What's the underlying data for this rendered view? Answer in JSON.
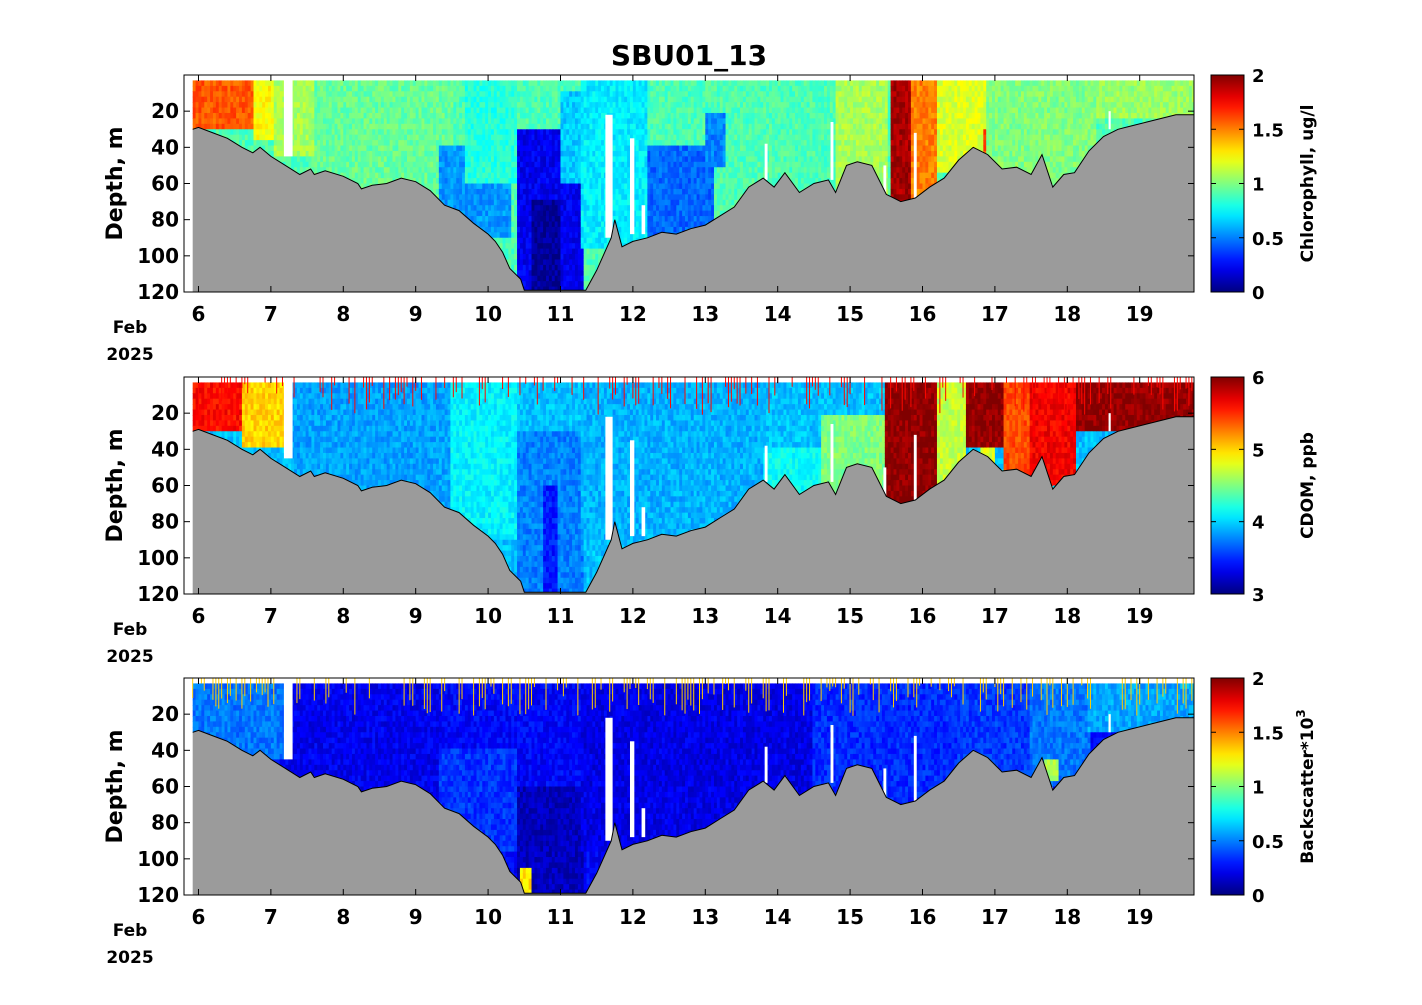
{
  "figure_title": "SBU01_13",
  "colors": {
    "bathymetry_fill": "#9b9b9b",
    "bathymetry_line": "#000000",
    "no_data": "#ffffff",
    "colormap": "jet"
  },
  "chart_data": [
    {
      "type": "heatmap",
      "title": "SBU01_13",
      "xlabel": "",
      "xlabel_date_lines": [
        "Feb",
        "2025"
      ],
      "ylabel": "Depth, m",
      "colorbar_label": "Chlorophyll, ug/l",
      "colorbar_label_sup": "",
      "x_unit": "day of Feb 2025",
      "xlim": [
        5.8,
        19.75
      ],
      "ylim": [
        120,
        0
      ],
      "x_ticks": [
        6,
        7,
        8,
        9,
        10,
        11,
        12,
        13,
        14,
        15,
        16,
        17,
        18,
        19
      ],
      "y_ticks": [
        20,
        40,
        60,
        80,
        100,
        120
      ],
      "clim": [
        0,
        2
      ],
      "colorbar_ticks": [
        "0",
        "0.5",
        "1",
        "1.5",
        "2"
      ],
      "background_level": 0.9,
      "surface_noise": false,
      "features": [
        {
          "x": [
            5.92,
            6.8
          ],
          "z": [
            3,
            30
          ],
          "level": 1.58
        },
        {
          "x": [
            6.75,
            7.05
          ],
          "z": [
            3,
            35
          ],
          "level": 1.25
        },
        {
          "x": [
            7.05,
            7.6
          ],
          "z": [
            3,
            45
          ],
          "level": 1.08
        },
        {
          "x": [
            7.6,
            9.5
          ],
          "z": [
            3,
            80
          ],
          "level": 0.95
        },
        {
          "x": [
            9.3,
            10.3
          ],
          "z": [
            40,
            90
          ],
          "level": 0.55
        },
        {
          "x": [
            9.7,
            10.4
          ],
          "z": [
            3,
            60
          ],
          "level": 0.82
        },
        {
          "x": [
            10.4,
            11.3
          ],
          "z": [
            30,
            120
          ],
          "level": 0.22
        },
        {
          "x": [
            10.6,
            11.0
          ],
          "z": [
            70,
            120
          ],
          "level": 0.05
        },
        {
          "x": [
            11.0,
            11.3
          ],
          "z": [
            10,
            60
          ],
          "level": 0.65
        },
        {
          "x": [
            11.3,
            12.2
          ],
          "z": [
            3,
            95
          ],
          "level": 0.72
        },
        {
          "x": [
            12.2,
            13.1
          ],
          "z": [
            40,
            90
          ],
          "level": 0.45
        },
        {
          "x": [
            13.0,
            13.3
          ],
          "z": [
            20,
            50
          ],
          "level": 0.5
        },
        {
          "x": [
            13.3,
            14.8
          ],
          "z": [
            3,
            70
          ],
          "level": 0.9
        },
        {
          "x": [
            14.8,
            15.5
          ],
          "z": [
            3,
            70
          ],
          "level": 1.08
        },
        {
          "x": [
            15.55,
            15.85
          ],
          "z": [
            3,
            72
          ],
          "level": 1.92
        },
        {
          "x": [
            15.85,
            16.2
          ],
          "z": [
            3,
            72
          ],
          "level": 1.5
        },
        {
          "x": [
            16.2,
            16.9
          ],
          "z": [
            3,
            55
          ],
          "level": 1.18
        },
        {
          "x": [
            16.85,
            16.95
          ],
          "z": [
            30,
            45
          ],
          "level": 1.6
        },
        {
          "x": [
            16.9,
            18.4
          ],
          "z": [
            3,
            60
          ],
          "level": 1.0
        },
        {
          "x": [
            18.4,
            19.75
          ],
          "z": [
            3,
            25
          ],
          "level": 1.05
        }
      ]
    },
    {
      "type": "heatmap",
      "title": "",
      "xlabel": "",
      "xlabel_date_lines": [
        "Feb",
        "2025"
      ],
      "ylabel": "Depth, m",
      "colorbar_label": "CDOM, ppb",
      "colorbar_label_sup": "",
      "x_unit": "day of Feb 2025",
      "xlim": [
        5.8,
        19.75
      ],
      "ylim": [
        120,
        0
      ],
      "x_ticks": [
        6,
        7,
        8,
        9,
        10,
        11,
        12,
        13,
        14,
        15,
        16,
        17,
        18,
        19
      ],
      "y_ticks": [
        20,
        40,
        60,
        80,
        100,
        120
      ],
      "clim": [
        3,
        6
      ],
      "colorbar_ticks": [
        "3",
        "4",
        "5",
        "6"
      ],
      "background_level": 3.95,
      "surface_noise": true,
      "features": [
        {
          "x": [
            5.92,
            6.6
          ],
          "z": [
            3,
            30
          ],
          "level": 5.6
        },
        {
          "x": [
            6.6,
            7.2
          ],
          "z": [
            3,
            40
          ],
          "level": 5.0
        },
        {
          "x": [
            7.3,
            9.5
          ],
          "z": [
            3,
            80
          ],
          "level": 3.85
        },
        {
          "x": [
            9.5,
            10.4
          ],
          "z": [
            3,
            90
          ],
          "level": 4.1
        },
        {
          "x": [
            10.4,
            11.3
          ],
          "z": [
            30,
            120
          ],
          "level": 3.75
        },
        {
          "x": [
            10.75,
            10.95
          ],
          "z": [
            60,
            120
          ],
          "level": 3.45
        },
        {
          "x": [
            11.3,
            13.8
          ],
          "z": [
            3,
            90
          ],
          "level": 3.9
        },
        {
          "x": [
            13.8,
            14.6
          ],
          "z": [
            40,
            70
          ],
          "level": 4.15
        },
        {
          "x": [
            14.6,
            15.5
          ],
          "z": [
            20,
            70
          ],
          "level": 4.5
        },
        {
          "x": [
            15.5,
            16.2
          ],
          "z": [
            3,
            72
          ],
          "level": 5.95
        },
        {
          "x": [
            16.2,
            16.6
          ],
          "z": [
            3,
            60
          ],
          "level": 4.7
        },
        {
          "x": [
            16.6,
            17.1
          ],
          "z": [
            3,
            40
          ],
          "level": 5.95
        },
        {
          "x": [
            16.8,
            17.0
          ],
          "z": [
            40,
            55
          ],
          "level": 4.8
        },
        {
          "x": [
            17.1,
            17.5
          ],
          "z": [
            3,
            60
          ],
          "level": 5.4
        },
        {
          "x": [
            17.5,
            18.1
          ],
          "z": [
            3,
            60
          ],
          "level": 5.65
        },
        {
          "x": [
            18.1,
            19.75
          ],
          "z": [
            3,
            30
          ],
          "level": 5.95
        }
      ]
    },
    {
      "type": "heatmap",
      "title": "",
      "xlabel": "",
      "xlabel_date_lines": [
        "Feb",
        "2025"
      ],
      "ylabel": "Depth, m",
      "colorbar_label": "Backscatter*10",
      "colorbar_label_sup": "3",
      "x_unit": "day of Feb 2025",
      "xlim": [
        5.8,
        19.75
      ],
      "ylim": [
        120,
        0
      ],
      "x_ticks": [
        6,
        7,
        8,
        9,
        10,
        11,
        12,
        13,
        14,
        15,
        16,
        17,
        18,
        19
      ],
      "y_ticks": [
        20,
        40,
        60,
        80,
        100,
        120
      ],
      "clim": [
        0,
        2
      ],
      "colorbar_ticks": [
        "0",
        "0.5",
        "1",
        "1.5",
        "2"
      ],
      "background_level": 0.25,
      "surface_noise": true,
      "features": [
        {
          "x": [
            5.92,
            7.2
          ],
          "z": [
            3,
            45
          ],
          "level": 0.48
        },
        {
          "x": [
            7.2,
            9.3
          ],
          "z": [
            3,
            80
          ],
          "level": 0.22
        },
        {
          "x": [
            9.3,
            10.4
          ],
          "z": [
            40,
            95
          ],
          "level": 0.35
        },
        {
          "x": [
            10.4,
            11.3
          ],
          "z": [
            60,
            120
          ],
          "level": 0.12
        },
        {
          "x": [
            10.45,
            10.6
          ],
          "z": [
            105,
            120
          ],
          "level": 1.3
        },
        {
          "x": [
            11.3,
            15.5
          ],
          "z": [
            3,
            95
          ],
          "level": 0.2
        },
        {
          "x": [
            14.5,
            16.5
          ],
          "z": [
            3,
            70
          ],
          "level": 0.33
        },
        {
          "x": [
            16.5,
            17.5
          ],
          "z": [
            3,
            60
          ],
          "level": 0.36
        },
        {
          "x": [
            17.5,
            18.3
          ],
          "z": [
            3,
            60
          ],
          "level": 0.48
        },
        {
          "x": [
            17.7,
            17.9
          ],
          "z": [
            45,
            58
          ],
          "level": 1.1
        },
        {
          "x": [
            18.3,
            19.75
          ],
          "z": [
            3,
            30
          ],
          "level": 0.58
        }
      ]
    }
  ],
  "bathymetry": {
    "x": [
      5.92,
      6.0,
      6.2,
      6.4,
      6.6,
      6.75,
      6.85,
      7.0,
      7.2,
      7.4,
      7.55,
      7.6,
      7.75,
      8.0,
      8.2,
      8.25,
      8.4,
      8.6,
      8.8,
      9.0,
      9.2,
      9.4,
      9.6,
      9.8,
      10.0,
      10.1,
      10.2,
      10.3,
      10.45,
      10.5,
      11.35,
      11.5,
      11.7,
      11.75,
      11.85,
      12.0,
      12.2,
      12.4,
      12.6,
      12.8,
      13.0,
      13.2,
      13.4,
      13.6,
      13.8,
      13.95,
      14.1,
      14.3,
      14.5,
      14.7,
      14.8,
      14.95,
      15.1,
      15.3,
      15.5,
      15.7,
      15.9,
      16.1,
      16.3,
      16.5,
      16.7,
      16.9,
      17.1,
      17.3,
      17.5,
      17.65,
      17.8,
      17.95,
      18.1,
      18.3,
      18.5,
      18.7,
      18.9,
      19.1,
      19.3,
      19.5,
      19.75
    ],
    "z": [
      30,
      29,
      32,
      35,
      40,
      43,
      40,
      45,
      50,
      55,
      52,
      55,
      53,
      56,
      60,
      63,
      61,
      60,
      57,
      59,
      64,
      72,
      75,
      82,
      88,
      92,
      98,
      107,
      113,
      119,
      119,
      108,
      90,
      80,
      95,
      92,
      90,
      87,
      88,
      85,
      83,
      78,
      73,
      62,
      57,
      62,
      54,
      65,
      60,
      58,
      65,
      50,
      48,
      50,
      66,
      70,
      68,
      62,
      57,
      47,
      40,
      44,
      52,
      51,
      55,
      44,
      62,
      55,
      54,
      42,
      34,
      30,
      28,
      26,
      24,
      22,
      22
    ]
  },
  "white_columns": [
    {
      "x": [
        7.18,
        7.3
      ],
      "z": [
        0,
        45
      ]
    },
    {
      "x": [
        11.62,
        11.72
      ],
      "z": [
        22,
        90
      ]
    },
    {
      "x": [
        11.96,
        12.02
      ],
      "z": [
        35,
        88
      ]
    },
    {
      "x": [
        12.12,
        12.17
      ],
      "z": [
        72,
        88
      ]
    },
    {
      "x": [
        13.82,
        13.86
      ],
      "z": [
        38,
        58
      ]
    },
    {
      "x": [
        14.73,
        14.77
      ],
      "z": [
        26,
        58
      ]
    },
    {
      "x": [
        15.46,
        15.5
      ],
      "z": [
        50,
        70
      ]
    },
    {
      "x": [
        15.88,
        15.92
      ],
      "z": [
        32,
        68
      ]
    },
    {
      "x": [
        18.57,
        18.6
      ],
      "z": [
        20,
        30
      ]
    }
  ]
}
